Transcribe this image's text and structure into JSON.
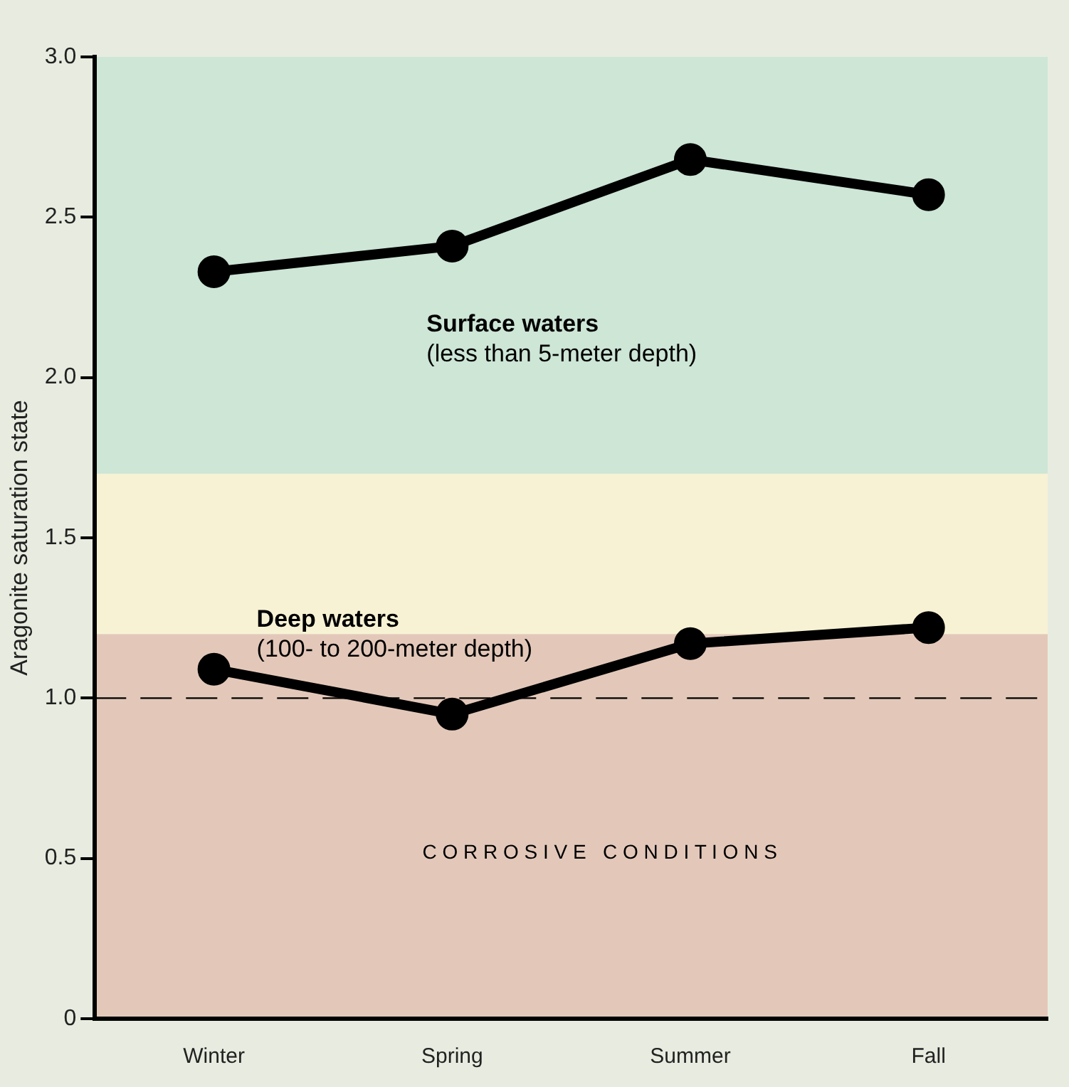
{
  "chart_data": {
    "type": "line",
    "ylabel": "Aragonite saturation state",
    "categories": [
      "Winter",
      "Spring",
      "Summer",
      "Fall"
    ],
    "series": [
      {
        "name": "Surface waters",
        "color": "#000000",
        "values": [
          2.33,
          2.41,
          2.68,
          2.57
        ]
      },
      {
        "name": "Deep waters",
        "color": "#000000",
        "values": [
          1.09,
          0.95,
          1.17,
          1.22
        ]
      }
    ],
    "ylim": [
      0,
      3
    ],
    "yticks": [
      0,
      0.5,
      {
        "value": 1,
        "label": "1.0"
      },
      1.5,
      {
        "value": 2,
        "label": "2.0"
      },
      2.5,
      {
        "value": 3,
        "label": "3.0"
      }
    ],
    "ref_lines": [
      {
        "axis": "y",
        "value": 1.0,
        "color": "#000000",
        "line_style": "dashed"
      }
    ],
    "bands": [
      {
        "axis": "y",
        "from": 0,
        "to": 1.2,
        "color": "#e3c8b9"
      },
      {
        "axis": "y",
        "from": 1.2,
        "to": 1.7,
        "color": "#f7f2d4"
      },
      {
        "axis": "y",
        "from": 1.7,
        "to": 3,
        "color": "#cde6d6"
      }
    ],
    "annotations": [
      "(less than 5-meter depth)",
      "(100- to 200-meter depth)",
      "C O R R O S I V E   C O N D I T I O N S"
    ],
    "grid": false,
    "legend": false,
    "marker": "circle",
    "line_style": "solid"
  }
}
